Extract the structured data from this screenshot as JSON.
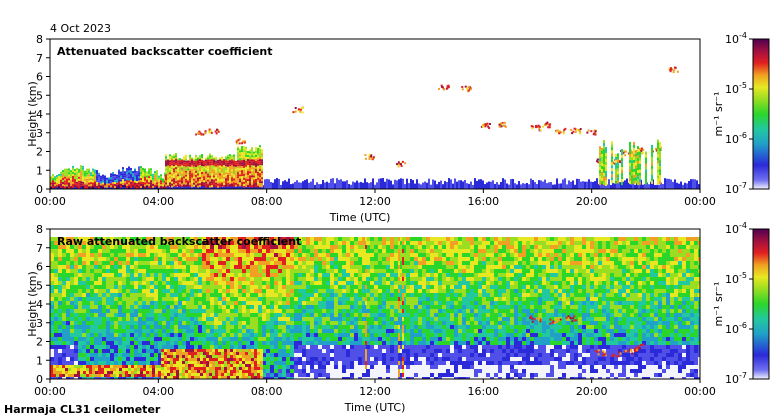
{
  "date_label": "4 Oct 2023",
  "footer": "Harmaja CL31 ceilometer",
  "colors": {
    "scale": [
      "#f4f4ff",
      "#5050e8",
      "#2a2ad8",
      "#21a0c8",
      "#22c8a0",
      "#2bd62b",
      "#9ade22",
      "#e8e822",
      "#f0a022",
      "#e02020",
      "#a01040",
      "#500050"
    ]
  },
  "chart_data": [
    {
      "type": "heatmap",
      "title": "Attenuated backscatter coefficient",
      "xlabel": "Time (UTC)",
      "ylabel": "Height (km)",
      "x_ticks": [
        "00:00",
        "04:00",
        "08:00",
        "12:00",
        "16:00",
        "20:00",
        "00:00"
      ],
      "y_ticks": [
        "0",
        "1",
        "2",
        "3",
        "4",
        "5",
        "6",
        "7",
        "8"
      ],
      "ylim": [
        0,
        8
      ],
      "colorbar": {
        "unit": "m⁻¹ sr⁻¹",
        "ticks": [
          {
            "base": "10",
            "exp": "-4"
          },
          {
            "base": "10",
            "exp": "-5"
          },
          {
            "base": "10",
            "exp": "-6"
          },
          {
            "base": "10",
            "exp": "-7"
          }
        ],
        "log": true
      }
    },
    {
      "type": "heatmap",
      "title": "Raw attenuated backscatter coefficient",
      "xlabel": "Time (UTC)",
      "ylabel": "Height (km)",
      "x_ticks": [
        "00:00",
        "04:00",
        "08:00",
        "12:00",
        "16:00",
        "20:00",
        "00:00"
      ],
      "y_ticks": [
        "0",
        "1",
        "2",
        "3",
        "4",
        "5",
        "6",
        "7",
        "8"
      ],
      "ylim": [
        0,
        8
      ],
      "colorbar": {
        "unit": "m⁻¹ sr⁻¹",
        "ticks": [
          {
            "base": "10",
            "exp": "-4"
          },
          {
            "base": "10",
            "exp": "-5"
          },
          {
            "base": "10",
            "exp": "-6"
          },
          {
            "base": "10",
            "exp": "-7"
          }
        ],
        "log": true
      }
    }
  ]
}
